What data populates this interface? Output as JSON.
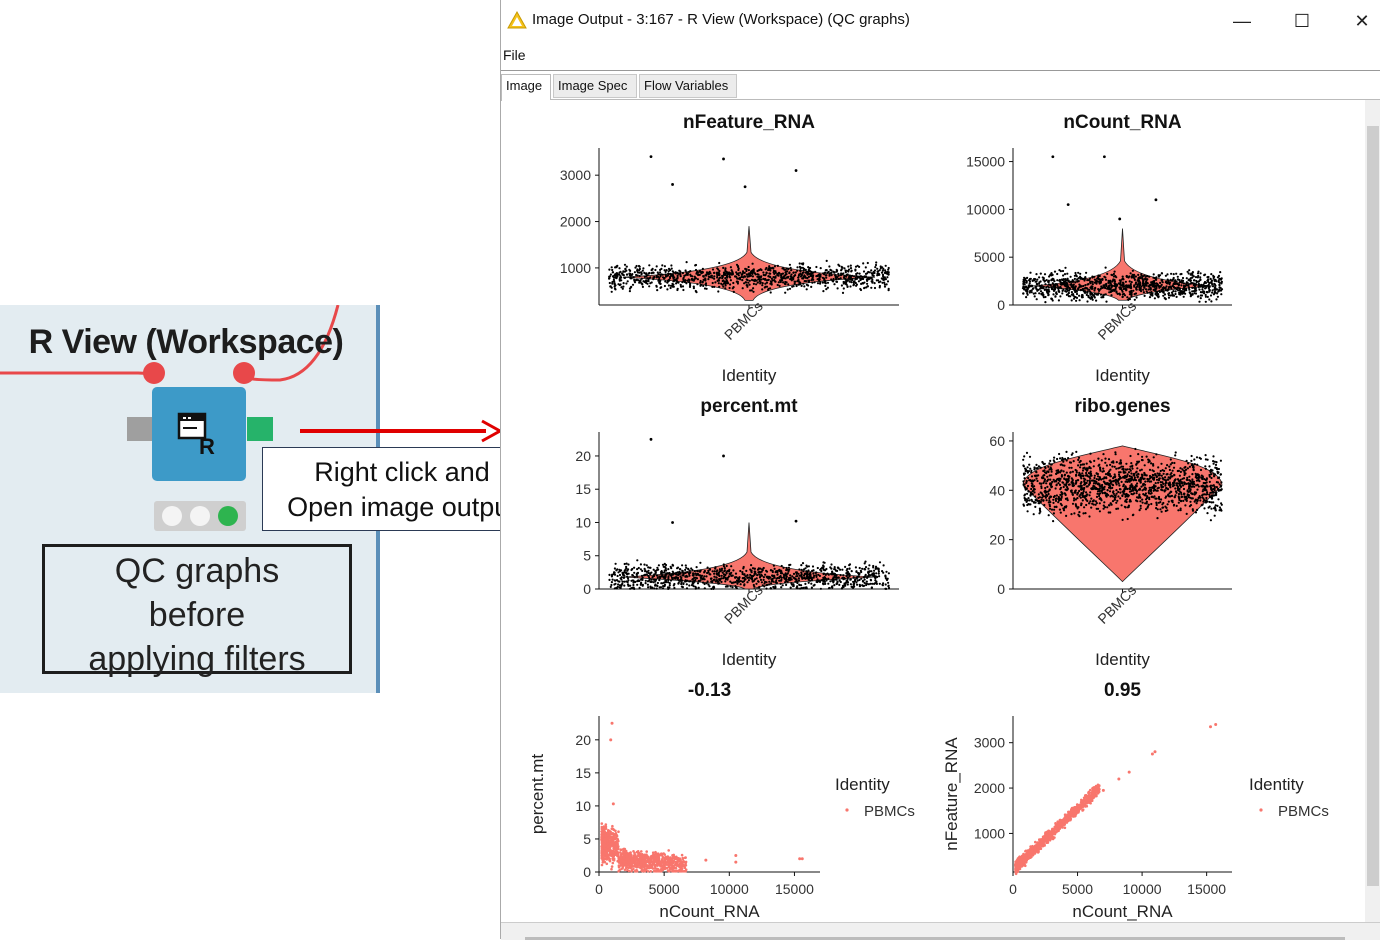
{
  "node": {
    "title": "R View (Workspace)",
    "icon_badge": "R",
    "label_lines": [
      "QC graphs",
      "before",
      "applying filters"
    ]
  },
  "callout": {
    "lines": [
      "Right click and",
      "Open image output"
    ]
  },
  "window": {
    "title": "Image Output - 3:167 - R View (Workspace) (QC graphs)",
    "menu": [
      "File"
    ],
    "tabs": [
      "Image",
      "Image Spec",
      "Flow Variables"
    ],
    "active_tab": "Image",
    "controls": {
      "minimize": "—",
      "maximize": "☐",
      "close": "✕"
    }
  },
  "colors": {
    "violin": "#f8766d",
    "points": "#000000",
    "arrow": "#e00000",
    "port_connected": "#e8484a"
  },
  "chart_data": [
    {
      "type": "violin",
      "title": "nFeature_RNA",
      "xlabel": "Identity",
      "ylabel": "",
      "categories": [
        "PBMCs"
      ],
      "yticks": [
        1000,
        2000,
        3000
      ],
      "ylim": [
        200,
        3500
      ],
      "median": 800,
      "spread": [
        300,
        1900
      ],
      "outliers": [
        3400,
        3350,
        3100,
        2800,
        2750
      ]
    },
    {
      "type": "violin",
      "title": "nCount_RNA",
      "xlabel": "Identity",
      "ylabel": "",
      "categories": [
        "PBMCs"
      ],
      "yticks": [
        0,
        5000,
        10000,
        15000
      ],
      "ylim": [
        0,
        16000
      ],
      "median": 2000,
      "spread": [
        500,
        8000
      ],
      "outliers": [
        15500,
        15500,
        11000,
        10500,
        9000
      ]
    },
    {
      "type": "violin",
      "title": "percent.mt",
      "xlabel": "Identity",
      "ylabel": "",
      "categories": [
        "PBMCs"
      ],
      "yticks": [
        0,
        5,
        10,
        15,
        20
      ],
      "ylim": [
        0,
        23
      ],
      "median": 1.8,
      "spread": [
        0,
        10
      ],
      "outliers": [
        22.5,
        20,
        10.2,
        10
      ]
    },
    {
      "type": "violin",
      "title": "ribo.genes",
      "xlabel": "Identity",
      "ylabel": "",
      "categories": [
        "PBMCs"
      ],
      "yticks": [
        0,
        20,
        40,
        60
      ],
      "ylim": [
        0,
        62
      ],
      "median": 42,
      "spread": [
        3,
        58
      ],
      "outliers": []
    },
    {
      "type": "scatter",
      "title": "-0.13",
      "xlabel": "nCount_RNA",
      "ylabel": "percent.mt",
      "xticks": [
        0,
        5000,
        10000,
        15000
      ],
      "yticks": [
        0,
        5,
        10,
        15,
        20
      ],
      "xlim": [
        0,
        16500
      ],
      "ylim": [
        0,
        23
      ],
      "legend_title": "Identity",
      "legend_entry": "PBMCs",
      "points": [
        [
          1000,
          22.5
        ],
        [
          900,
          20
        ],
        [
          1100,
          10.3
        ],
        [
          10500,
          2.5
        ],
        [
          10500,
          1.5
        ],
        [
          15400,
          2.0
        ],
        [
          15600,
          2.0
        ],
        [
          8200,
          1.8
        ]
      ]
    },
    {
      "type": "scatter",
      "title": "0.95",
      "xlabel": "nCount_RNA",
      "ylabel": "nFeature_RNA",
      "xticks": [
        0,
        5000,
        10000,
        15000
      ],
      "yticks": [
        1000,
        2000,
        3000
      ],
      "xlim": [
        0,
        16500
      ],
      "ylim": [
        150,
        3500
      ],
      "legend_title": "Identity",
      "legend_entry": "PBMCs",
      "points": [
        [
          15300,
          3350
        ],
        [
          15700,
          3400
        ],
        [
          11000,
          2800
        ],
        [
          10800,
          2750
        ],
        [
          9000,
          2350
        ],
        [
          8200,
          2200
        ],
        [
          7000,
          1950
        ]
      ]
    }
  ]
}
